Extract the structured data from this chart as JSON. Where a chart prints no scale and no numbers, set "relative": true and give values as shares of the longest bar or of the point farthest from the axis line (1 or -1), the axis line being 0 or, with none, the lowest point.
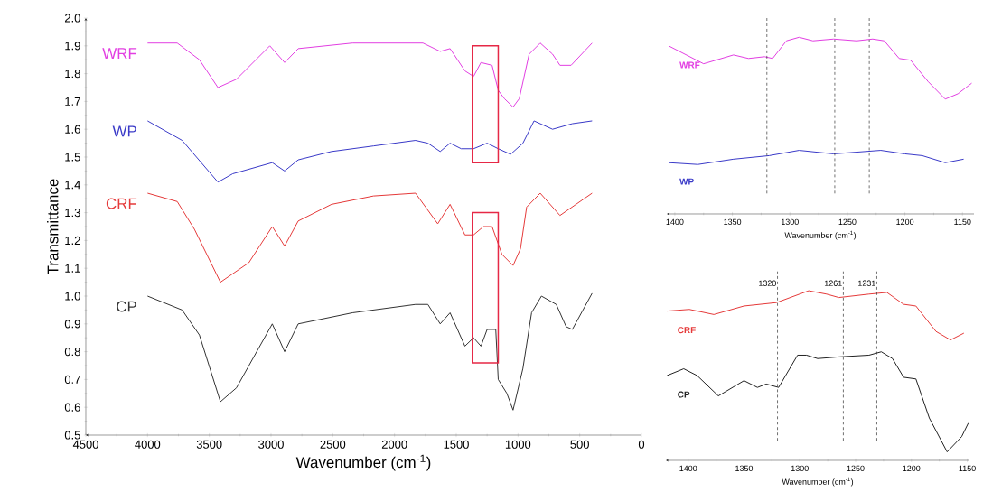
{
  "chart_data": [
    {
      "type": "line",
      "xlabel": "Wavenumber (cm$^{-1}$)",
      "ylabel": "Transmittance",
      "xlim": [
        4500,
        0
      ],
      "ylim": [
        0.5,
        2.0
      ],
      "xticks": [
        4500,
        4000,
        3500,
        3000,
        2500,
        2000,
        1500,
        1000,
        500,
        0
      ],
      "yticks": [
        0.5,
        0.6,
        0.7,
        0.8,
        0.9,
        {
          "value": 1.0,
          "label": "1.0"
        },
        1.1,
        1.2,
        1.3,
        1.4,
        1.5,
        1.6,
        1.7,
        1.8,
        1.9,
        {
          "value": 2.0,
          "label": "2.0"
        }
      ],
      "series": [
        {
          "name": "WRF",
          "color": "#e23fe2",
          "x": [
            4000,
            3760,
            3580,
            3430,
            3280,
            3010,
            2890,
            2780,
            2340,
            1770,
            1630,
            1550,
            1430,
            1360,
            1300,
            1210,
            1160,
            1110,
            1040,
            990,
            910,
            820,
            720,
            660,
            570,
            400
          ],
          "values": [
            1.91,
            1.91,
            1.85,
            1.75,
            1.78,
            1.9,
            1.84,
            1.89,
            1.91,
            1.91,
            1.88,
            1.89,
            1.81,
            1.79,
            1.84,
            1.83,
            1.74,
            1.71,
            1.68,
            1.71,
            1.87,
            1.91,
            1.87,
            1.83,
            1.83,
            1.91
          ]
        },
        {
          "name": "WP",
          "color": "#3a3ac8",
          "x": [
            4000,
            3720,
            3430,
            3310,
            2990,
            2890,
            2780,
            2510,
            2170,
            1830,
            1730,
            1630,
            1550,
            1460,
            1360,
            1250,
            1160,
            1060,
            960,
            870,
            720,
            560,
            400
          ],
          "values": [
            1.63,
            1.56,
            1.41,
            1.44,
            1.48,
            1.45,
            1.49,
            1.52,
            1.54,
            1.56,
            1.55,
            1.52,
            1.55,
            1.53,
            1.53,
            1.55,
            1.53,
            1.51,
            1.55,
            1.63,
            1.6,
            1.62,
            1.63
          ]
        },
        {
          "name": "CRF",
          "color": "#e53a3a",
          "x": [
            4000,
            3760,
            3620,
            3410,
            3180,
            2990,
            2890,
            2780,
            2510,
            2170,
            1830,
            1650,
            1550,
            1430,
            1360,
            1280,
            1210,
            1130,
            1040,
            980,
            930,
            820,
            660,
            400
          ],
          "values": [
            1.37,
            1.34,
            1.24,
            1.05,
            1.12,
            1.25,
            1.18,
            1.27,
            1.33,
            1.36,
            1.37,
            1.26,
            1.33,
            1.22,
            1.22,
            1.25,
            1.25,
            1.15,
            1.11,
            1.17,
            1.32,
            1.37,
            1.29,
            1.37
          ]
        },
        {
          "name": "CP",
          "color": "#333333",
          "x": [
            4000,
            3720,
            3580,
            3410,
            3280,
            2990,
            2890,
            2780,
            2340,
            1830,
            1730,
            1630,
            1550,
            1430,
            1360,
            1300,
            1250,
            1180,
            1160,
            1090,
            1040,
            960,
            890,
            810,
            690,
            610,
            560,
            400
          ],
          "values": [
            1.0,
            0.95,
            0.86,
            0.62,
            0.67,
            0.9,
            0.8,
            0.9,
            0.94,
            0.97,
            0.97,
            0.9,
            0.94,
            0.82,
            0.85,
            0.82,
            0.88,
            0.88,
            0.7,
            0.65,
            0.59,
            0.74,
            0.94,
            1.0,
            0.97,
            0.89,
            0.88,
            1.01
          ]
        }
      ]
    },
    {
      "type": "line",
      "relative": true,
      "xlabel": "Wavenumber (cm$^{-1}$)",
      "xlim": [
        1407,
        1140
      ],
      "xticks": [
        1400,
        1350,
        1300,
        1250,
        1200,
        1150
      ],
      "series": [
        {
          "name": "WRF",
          "color": "#e23fe2",
          "x": [
            1405,
            1375,
            1349,
            1336,
            1322,
            1315,
            1303,
            1292,
            1280,
            1262,
            1242,
            1228,
            1218,
            1205,
            1195,
            1180,
            1165,
            1154,
            1142
          ],
          "values": [
            0.95,
            0.85,
            0.9,
            0.88,
            0.89,
            0.88,
            0.98,
            1,
            0.98,
            0.99,
            0.98,
            0.99,
            0.98,
            0.88,
            0.87,
            0.75,
            0.65,
            0.68,
            0.74
          ]
        },
        {
          "name": "WP",
          "color": "#3a3ac8",
          "x": [
            1405,
            1380,
            1349,
            1318,
            1292,
            1262,
            1221,
            1200,
            1185,
            1165,
            1149
          ],
          "values": [
            0.29,
            0.28,
            0.31,
            0.33,
            0.36,
            0.34,
            0.36,
            0.34,
            0.33,
            0.29,
            0.31
          ]
        }
      ],
      "ref_lines": [
        {
          "axis": "x",
          "value": 1320,
          "color": "#333333",
          "line_style": "dashed"
        },
        {
          "axis": "x",
          "value": 1261,
          "color": "#333333",
          "line_style": "dashed"
        },
        {
          "axis": "x",
          "value": 1231,
          "color": "#333333",
          "line_style": "dashed"
        }
      ]
    },
    {
      "type": "line",
      "relative": true,
      "xlabel": "Wavenumber (cm$^{-1}$)",
      "xlim": [
        1420,
        1148
      ],
      "xticks": [
        1400,
        1350,
        1300,
        1250,
        1200,
        1150
      ],
      "series": [
        {
          "name": "CRF",
          "color": "#e53a3a",
          "x": [
            1419,
            1399,
            1377,
            1350,
            1321,
            1292,
            1276,
            1265,
            1238,
            1222,
            1207,
            1196,
            1178,
            1165,
            1153
          ],
          "values": [
            0.88,
            0.89,
            0.86,
            0.91,
            0.93,
            1,
            0.98,
            0.96,
            0.98,
            0.99,
            0.92,
            0.91,
            0.76,
            0.71,
            0.75
          ]
        },
        {
          "name": "CP",
          "color": "#222222",
          "x": [
            1419,
            1404,
            1392,
            1373,
            1350,
            1338,
            1330,
            1319,
            1302,
            1294,
            1284,
            1265,
            1238,
            1227,
            1217,
            1207,
            1196,
            1184,
            1168,
            1155,
            1149
          ],
          "values": [
            0.5,
            0.54,
            0.5,
            0.38,
            0.47,
            0.43,
            0.45,
            0.43,
            0.62,
            0.62,
            0.6,
            0.61,
            0.62,
            0.64,
            0.6,
            0.49,
            0.48,
            0.25,
            0.05,
            0.14,
            0.22
          ]
        }
      ],
      "ref_lines": [
        {
          "axis": "x",
          "value": 1320,
          "label": "1320",
          "color": "#333333",
          "line_style": "dashed"
        },
        {
          "axis": "x",
          "value": 1261,
          "label": "1261",
          "color": "#333333",
          "line_style": "dashed"
        },
        {
          "axis": "x",
          "value": 1231,
          "label": "1231",
          "color": "#333333",
          "line_style": "dashed"
        }
      ]
    }
  ]
}
